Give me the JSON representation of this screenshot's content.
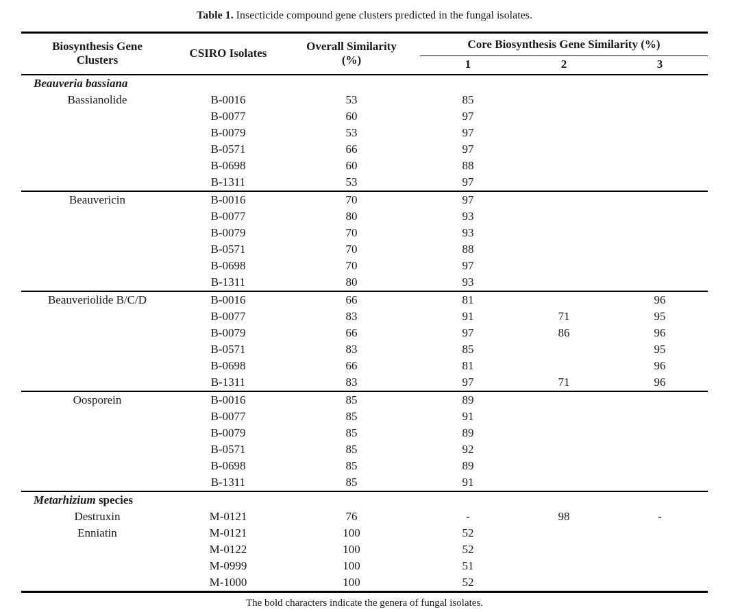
{
  "caption": {
    "label": "Table 1.",
    "text": "Insecticide compound gene clusters predicted in the fungal isolates."
  },
  "headers": {
    "clusters": {
      "line1": "Biosynthesis Gene",
      "line2": "Clusters"
    },
    "isolates": "CSIRO Isolates",
    "overall": {
      "line1": "Overall Similarity",
      "line2": "(%)"
    },
    "core": "Core Biosynthesis Gene Similarity (%)",
    "core_sub": [
      "1",
      "2",
      "3"
    ]
  },
  "table": {
    "sections": [
      {
        "genus": {
          "italic": "Beauveria bassiana",
          "rest": ""
        },
        "rows": [
          [
            "Bassianolide",
            "B-0016",
            "53",
            "85",
            "",
            ""
          ],
          [
            "",
            "B-0077",
            "60",
            "97",
            "",
            ""
          ],
          [
            "",
            "B-0079",
            "53",
            "97",
            "",
            ""
          ],
          [
            "",
            "B-0571",
            "66",
            "97",
            "",
            ""
          ],
          [
            "",
            "B-0698",
            "60",
            "88",
            "",
            ""
          ],
          [
            "",
            "B-1311",
            "53",
            "97",
            "",
            ""
          ]
        ]
      },
      {
        "genus": null,
        "rows": [
          [
            "Beauvericin",
            "B-0016",
            "70",
            "97",
            "",
            ""
          ],
          [
            "",
            "B-0077",
            "80",
            "93",
            "",
            ""
          ],
          [
            "",
            "B-0079",
            "70",
            "93",
            "",
            ""
          ],
          [
            "",
            "B-0571",
            "70",
            "88",
            "",
            ""
          ],
          [
            "",
            "B-0698",
            "70",
            "97",
            "",
            ""
          ],
          [
            "",
            "B-1311",
            "80",
            "93",
            "",
            ""
          ]
        ]
      },
      {
        "genus": null,
        "rows": [
          [
            "Beauveriolide B/C/D",
            "B-0016",
            "66",
            "81",
            "",
            "96"
          ],
          [
            "",
            "B-0077",
            "83",
            "91",
            "71",
            "95"
          ],
          [
            "",
            "B-0079",
            "66",
            "97",
            "86",
            "96"
          ],
          [
            "",
            "B-0571",
            "83",
            "85",
            "",
            "95"
          ],
          [
            "",
            "B-0698",
            "66",
            "81",
            "",
            "96"
          ],
          [
            "",
            "B-1311",
            "83",
            "97",
            "71",
            "96"
          ]
        ]
      },
      {
        "genus": null,
        "rows": [
          [
            "Oosporein",
            "B-0016",
            "85",
            "89",
            "",
            ""
          ],
          [
            "",
            "B-0077",
            "85",
            "91",
            "",
            ""
          ],
          [
            "",
            "B-0079",
            "85",
            "89",
            "",
            ""
          ],
          [
            "",
            "B-0571",
            "85",
            "92",
            "",
            ""
          ],
          [
            "",
            "B-0698",
            "85",
            "89",
            "",
            ""
          ],
          [
            "",
            "B-1311",
            "85",
            "91",
            "",
            ""
          ]
        ]
      },
      {
        "genus": {
          "italic": "Metarhizium",
          "rest": " species"
        },
        "rows": [
          [
            "Destruxin",
            "M-0121",
            "76",
            "-",
            "98",
            "-"
          ],
          [
            "Enniatin",
            "M-0121",
            "100",
            "52",
            "",
            ""
          ],
          [
            "",
            "M-0122",
            "100",
            "52",
            "",
            ""
          ],
          [
            "",
            "M-0999",
            "100",
            "51",
            "",
            ""
          ],
          [
            "",
            "M-1000",
            "100",
            "52",
            "",
            ""
          ]
        ]
      }
    ]
  },
  "footnote": "The bold characters indicate the genera of fungal isolates."
}
